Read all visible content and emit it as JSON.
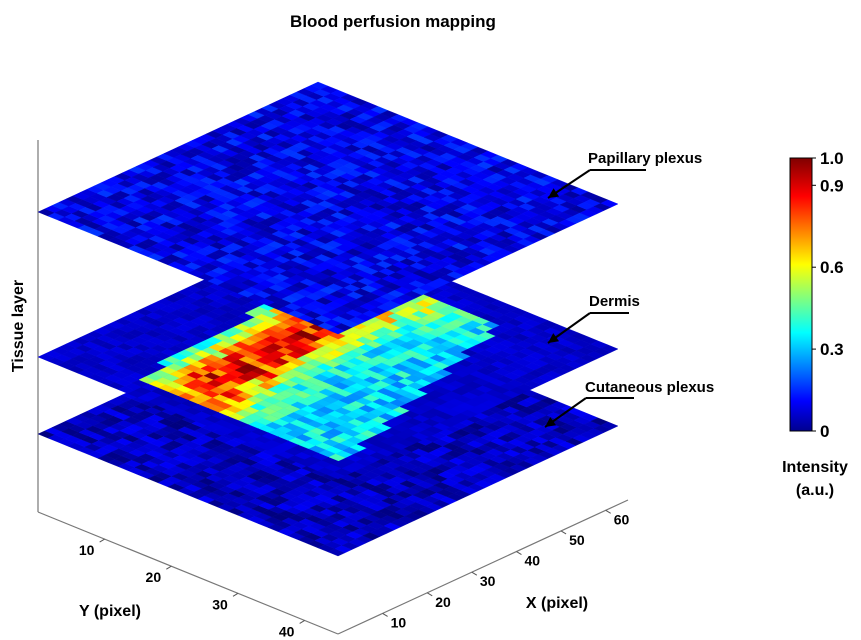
{
  "chart_data": {
    "type": "heatmap",
    "title": "Blood perfusion mapping",
    "zlabel": "Tissue layer",
    "xlabel": "X (pixel)",
    "ylabel": "Y (pixel)",
    "xticks": [
      10,
      20,
      30,
      40,
      50,
      60
    ],
    "yticks": [
      10,
      20,
      30,
      40
    ],
    "xlim": [
      0,
      65
    ],
    "ylim": [
      0,
      45
    ],
    "grid": false,
    "layers": [
      {
        "label": "Papillary plexus",
        "level": 3,
        "intensity_range": [
          0.03,
          0.18
        ]
      },
      {
        "label": "Dermis",
        "level": 2,
        "intensity_range": [
          0.0,
          0.85
        ]
      },
      {
        "label": "Cutaneous plexus",
        "level": 1,
        "intensity_range": [
          0.0,
          0.12
        ]
      }
    ],
    "colorbar": {
      "label_line1": "Intensity",
      "label_line2": "(a.u.)",
      "range": [
        0,
        1.0
      ],
      "ticks": [
        "1.0",
        "0.9",
        "0.6",
        "0.3",
        "0"
      ],
      "tick_values": [
        1.0,
        0.9,
        0.6,
        0.3,
        0
      ],
      "colormap": "jet"
    }
  }
}
